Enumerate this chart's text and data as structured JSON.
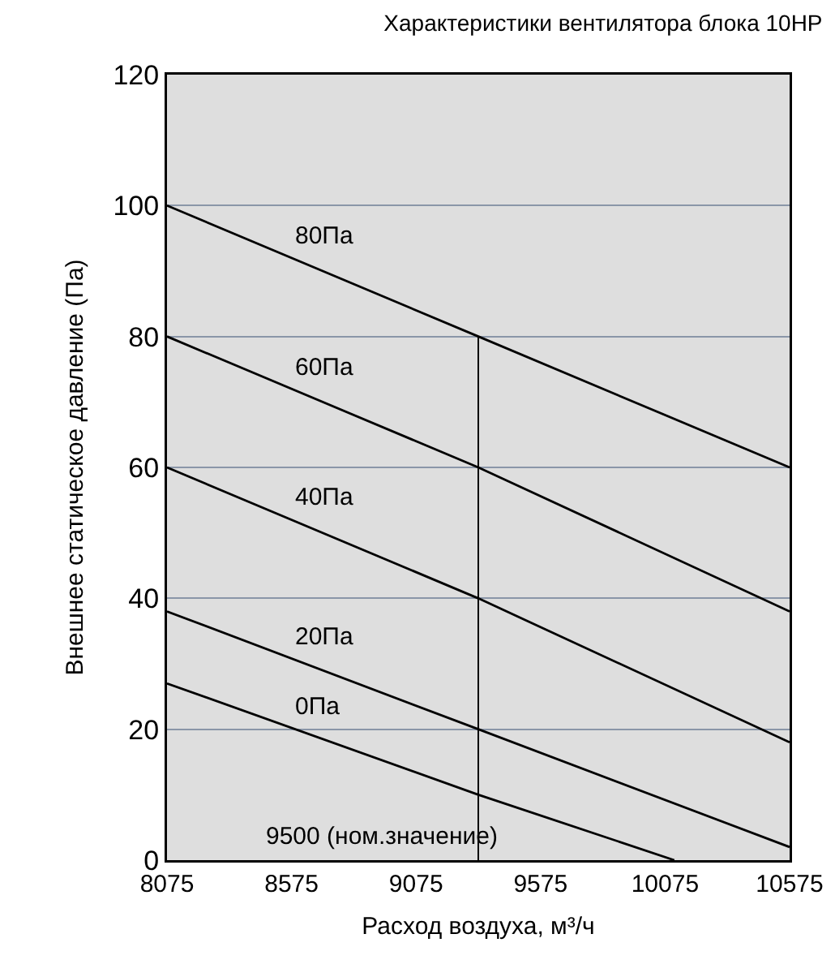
{
  "chart_data": {
    "type": "line",
    "title": "Характеристики вентилятора блока 10HP",
    "xlabel": "Расход воздуха, м³/ч",
    "ylabel": "Внешнее статическое давление (Па)",
    "xlim": [
      8075,
      10575
    ],
    "xticks": [
      8075,
      8575,
      9075,
      9575,
      10075,
      10575
    ],
    "ylim": [
      0,
      120
    ],
    "yticks": [
      0,
      20,
      40,
      60,
      80,
      100,
      120
    ],
    "grid": "y",
    "legend": false,
    "marker": "none",
    "line_style": "solid",
    "series": [
      {
        "name": "80Па",
        "color": "#000000",
        "x": [
          8075,
          9325,
          10575
        ],
        "values": [
          100,
          80,
          60
        ]
      },
      {
        "name": "60Па",
        "color": "#000000",
        "x": [
          8075,
          9325,
          10575
        ],
        "values": [
          80,
          60,
          38
        ]
      },
      {
        "name": "40Па",
        "color": "#000000",
        "x": [
          8075,
          9325,
          10575
        ],
        "values": [
          60,
          40,
          18
        ]
      },
      {
        "name": "20Па",
        "color": "#000000",
        "x": [
          8075,
          9325,
          10575
        ],
        "values": [
          38,
          20,
          2
        ]
      },
      {
        "name": "0Па",
        "color": "#000000",
        "x": [
          8075,
          9325,
          10112
        ],
        "values": [
          27,
          10,
          0
        ]
      }
    ],
    "ref_lines": [
      {
        "axis": "x",
        "value": 9325,
        "label": "9500 (ном.значение)",
        "color": "#000000"
      }
    ]
  }
}
